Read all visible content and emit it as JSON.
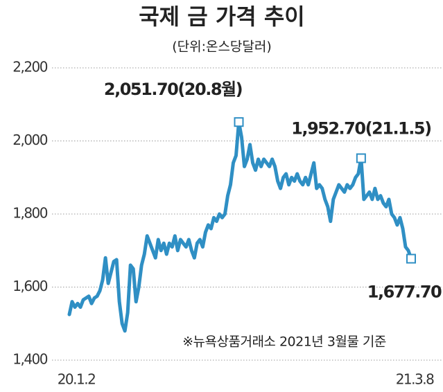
{
  "chart_data": {
    "type": "line",
    "title": "국제 금 가격 추이",
    "subtitle": "(단위:온스당달러)",
    "note": "※뉴욕상품거래소 2021년 3월물 기준",
    "categories": [
      "20.1.2",
      null,
      null,
      null,
      null,
      null,
      null,
      null,
      null,
      null,
      null,
      null,
      null,
      null,
      null,
      null,
      null,
      null,
      null,
      null,
      null,
      null,
      null,
      null,
      null,
      null,
      null,
      null,
      null,
      null,
      null,
      null,
      null,
      null,
      null,
      null,
      null,
      null,
      null,
      null,
      null,
      null,
      null,
      null,
      null,
      null,
      null,
      null,
      null,
      null,
      null,
      null,
      null,
      null,
      null,
      null,
      null,
      null,
      null,
      null,
      null,
      null,
      null,
      null,
      null,
      null,
      null,
      null,
      null,
      null,
      null,
      null,
      null,
      null,
      null,
      null,
      null,
      null,
      null,
      null,
      null,
      null,
      null,
      null,
      null,
      null,
      null,
      null,
      null,
      null,
      null,
      null,
      null,
      null,
      null,
      null,
      null,
      null,
      null,
      null,
      null,
      null,
      null,
      null,
      null,
      null,
      null,
      null,
      null,
      null,
      null,
      null,
      null,
      null,
      null,
      null,
      null,
      null,
      null,
      null,
      null,
      null,
      null,
      "21.3.8"
    ],
    "series": [
      {
        "name": "금 가격",
        "color": "#2f8fc4",
        "values": [
          1525,
          1560,
          1545,
          1555,
          1545,
          1565,
          1570,
          1575,
          1555,
          1570,
          1575,
          1590,
          1620,
          1680,
          1610,
          1640,
          1670,
          1675,
          1560,
          1500,
          1480,
          1530,
          1660,
          1650,
          1560,
          1600,
          1660,
          1690,
          1740,
          1720,
          1700,
          1680,
          1730,
          1700,
          1720,
          1690,
          1720,
          1710,
          1740,
          1700,
          1730,
          1720,
          1710,
          1730,
          1700,
          1680,
          1720,
          1730,
          1710,
          1750,
          1770,
          1760,
          1790,
          1780,
          1800,
          1790,
          1800,
          1850,
          1880,
          1940,
          1960,
          2051.7,
          2010,
          1930,
          1950,
          1990,
          1940,
          1920,
          1950,
          1930,
          1950,
          1940,
          1930,
          1950,
          1930,
          1890,
          1870,
          1900,
          1910,
          1880,
          1900,
          1890,
          1910,
          1890,
          1880,
          1900,
          1880,
          1910,
          1940,
          1870,
          1880,
          1870,
          1840,
          1820,
          1780,
          1840,
          1860,
          1880,
          1870,
          1860,
          1880,
          1870,
          1880,
          1900,
          1910,
          1952.7,
          1840,
          1850,
          1860,
          1840,
          1870,
          1840,
          1850,
          1830,
          1820,
          1840,
          1800,
          1790,
          1770,
          1790,
          1760,
          1710,
          1700,
          1677.7
        ]
      }
    ],
    "annotations": [
      {
        "text": "2,051.70(20.8월)",
        "value": 2051.7
      },
      {
        "text": "1,952.70(21.1.5)",
        "value": 1952.7
      },
      {
        "text": "1,677.70",
        "value": 1677.7
      }
    ],
    "ylim": [
      1400,
      2200
    ],
    "yticks": [
      {
        "value": 1400,
        "label": "1,400"
      },
      {
        "value": 1600,
        "label": "1,600"
      },
      {
        "value": 1800,
        "label": "1,800"
      },
      {
        "value": 2000,
        "label": "2,000"
      },
      {
        "value": 2200,
        "label": "2,200"
      }
    ],
    "grid": true
  }
}
